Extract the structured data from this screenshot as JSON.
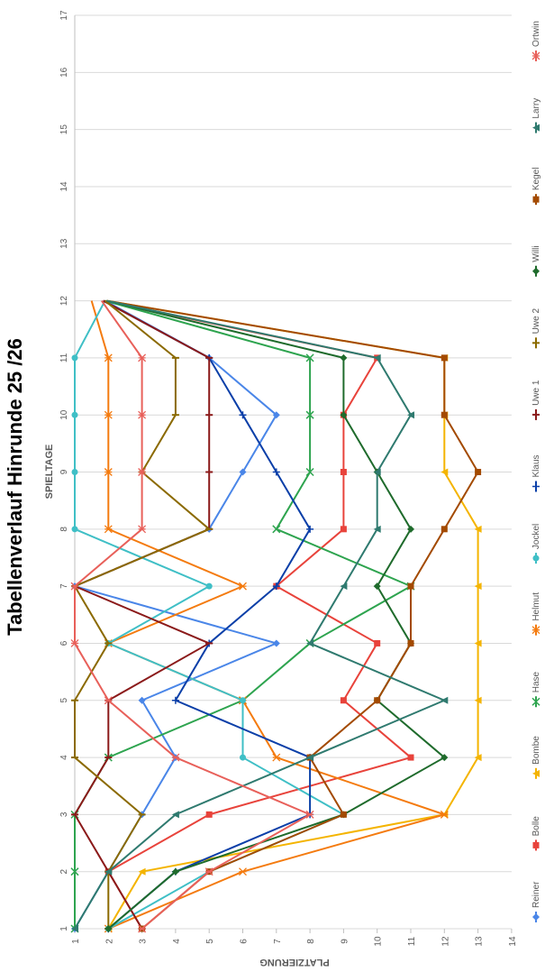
{
  "chart_data": {
    "type": "line",
    "title": "Tabellenverlauf Hinrunde 25 /26",
    "xlabel": "SPIELTAGE",
    "ylabel": "PLATZIERUNG",
    "xlim": [
      1,
      17
    ],
    "ylim": [
      1,
      14
    ],
    "x_ticks": [
      "1",
      "2",
      "3",
      "4",
      "5",
      "6",
      "7",
      "8",
      "9",
      "10",
      "11",
      "12",
      "13",
      "14",
      "15",
      "16",
      "17"
    ],
    "y_ticks": [
      "1",
      "2",
      "3",
      "4",
      "5",
      "6",
      "7",
      "8",
      "9",
      "10",
      "11",
      "12",
      "13",
      "14"
    ],
    "legend_position": "bottom",
    "series": [
      {
        "name": "Reiner",
        "color": "#4a86e8",
        "marker": "diamond",
        "values": [
          1,
          2,
          3,
          4,
          3,
          7,
          1,
          5,
          6,
          7,
          5,
          1.9
        ]
      },
      {
        "name": "Bolle",
        "color": "#e8433b",
        "marker": "square",
        "values": [
          3,
          2,
          5,
          11,
          9,
          10,
          7,
          9,
          9,
          9,
          10,
          1.85
        ]
      },
      {
        "name": "Bombe",
        "color": "#f4b400",
        "marker": "tri",
        "values": [
          2,
          3,
          12,
          13,
          13,
          13,
          13,
          13,
          12,
          12,
          12,
          1.95
        ]
      },
      {
        "name": "Hase",
        "color": "#2ea44f",
        "marker": "x",
        "values": [
          1,
          1,
          1,
          2,
          6,
          8,
          11,
          7,
          8,
          8,
          8,
          1.9
        ]
      },
      {
        "name": "Helmut",
        "color": "#f47b0f",
        "marker": "star",
        "values": [
          2,
          6,
          12,
          7,
          6,
          2,
          6,
          2,
          2,
          2,
          2,
          1.5
        ]
      },
      {
        "name": "Jockel",
        "color": "#3fbfc6",
        "marker": "circle",
        "values": [
          2,
          5,
          9,
          6,
          6,
          2,
          5,
          1,
          1,
          1,
          1,
          1.9
        ]
      },
      {
        "name": "Klaus",
        "color": "#0b3fa8",
        "marker": "plus",
        "values": [
          2,
          4,
          8,
          8,
          4,
          5,
          7,
          8,
          7,
          6,
          5,
          1.85
        ]
      },
      {
        "name": "Uwe 1",
        "color": "#8b1a1a",
        "marker": "dash",
        "values": [
          3,
          2,
          1,
          2,
          2,
          5,
          1,
          5,
          5,
          5,
          5,
          1.85
        ]
      },
      {
        "name": "Uwe 2",
        "color": "#8b6a00",
        "marker": "dash",
        "values": [
          2,
          2,
          3,
          1,
          1,
          2,
          1,
          5,
          3,
          4,
          4,
          1.9
        ]
      },
      {
        "name": "Willi",
        "color": "#1f6b2c",
        "marker": "diamond",
        "values": [
          2,
          4,
          9,
          12,
          10,
          11,
          10,
          11,
          10,
          9,
          9,
          1.95
        ]
      },
      {
        "name": "Kegel",
        "color": "#a34a00",
        "marker": "square",
        "values": [
          3,
          5,
          9,
          8,
          10,
          11,
          11,
          12,
          13,
          12,
          12,
          1.95
        ]
      },
      {
        "name": "Larry",
        "color": "#2f7a6f",
        "marker": "tri",
        "values": [
          1,
          2,
          4,
          8,
          12,
          8,
          9,
          10,
          10,
          11,
          10,
          1.95
        ]
      },
      {
        "name": "Ortwin",
        "color": "#e8605a",
        "marker": "star",
        "values": [
          3,
          5,
          8,
          4,
          2,
          1,
          1,
          3,
          3,
          3,
          3,
          1.8
        ]
      }
    ]
  }
}
